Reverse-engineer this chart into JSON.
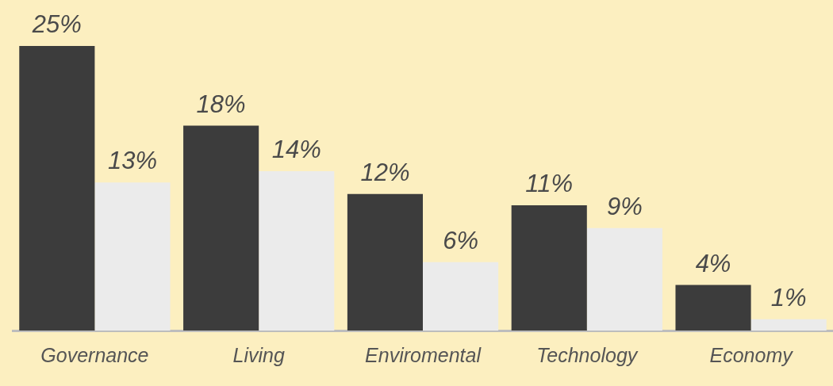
{
  "chart_data": {
    "type": "bar",
    "categories": [
      "Governance",
      "Living",
      "Enviromental",
      "Technology",
      "Economy"
    ],
    "series": [
      {
        "color": "#3c3c3c",
        "values": [
          25,
          18,
          12,
          11,
          4
        ],
        "value_labels": [
          "25%",
          "18%",
          "12%",
          "11%",
          "4%"
        ]
      },
      {
        "color": "#ebebeb",
        "values": [
          13,
          14,
          6,
          9,
          1
        ],
        "value_labels": [
          "13%",
          "14%",
          "6%",
          "9%",
          "1%"
        ]
      }
    ],
    "tick_labels": "x",
    "grid": false,
    "legend": false
  }
}
